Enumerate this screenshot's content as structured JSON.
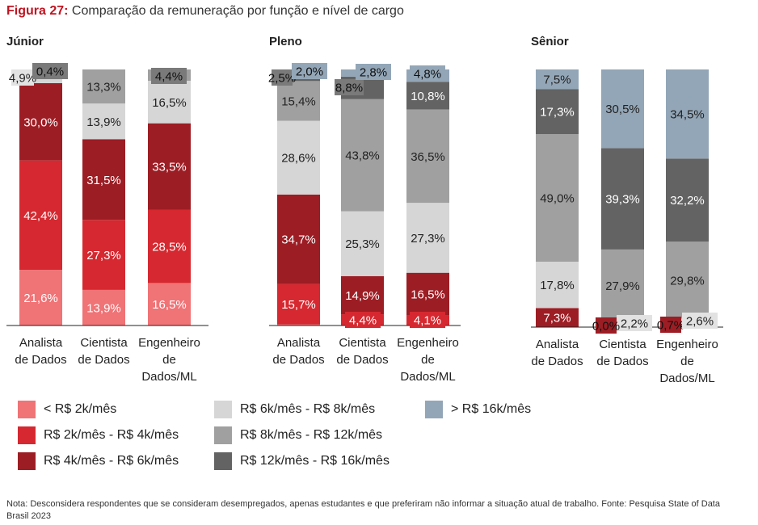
{
  "figure": {
    "label": "Figura 27:",
    "title": "Comparação da remuneração por função e nível de cargo"
  },
  "chart_data": {
    "type": "bar",
    "stacked": true,
    "normalized_to": 100,
    "value_unit": "%",
    "panels": [
      {
        "title": "Júnior",
        "categories": [
          [
            "Analista",
            "de Dados"
          ],
          [
            "Cientista",
            "de Dados"
          ],
          [
            "Engenheiro",
            "de",
            "Dados/ML"
          ]
        ],
        "values": [
          [
            21.6,
            42.4,
            30.0,
            4.9,
            0.4,
            0.0,
            0.0
          ],
          [
            13.9,
            27.3,
            31.5,
            13.9,
            13.3,
            0.0,
            0.0
          ],
          [
            16.5,
            28.5,
            33.5,
            16.5,
            4.4,
            0.0,
            0.0
          ]
        ],
        "labels": [
          [
            "21,6%",
            "42,4%",
            "30,0%",
            "4,9%",
            "0,4%",
            "",
            ""
          ],
          [
            "13,9%",
            "27,3%",
            "31,5%",
            "13,9%",
            "13,3%",
            "",
            ""
          ],
          [
            "16,5%",
            "28,5%",
            "33,5%",
            "16,5%",
            "4,4%",
            "",
            ""
          ]
        ]
      },
      {
        "title": "Pleno",
        "categories": [
          [
            "Analista",
            "de Dados"
          ],
          [
            "Cientista",
            "de Dados"
          ],
          [
            "Engenheiro",
            "de",
            "Dados/ML"
          ]
        ],
        "values": [
          [
            0.4,
            15.7,
            34.7,
            28.6,
            15.4,
            2.5,
            2.0
          ],
          [
            0.0,
            4.4,
            14.9,
            25.3,
            43.8,
            8.8,
            2.8
          ],
          [
            0.0,
            4.1,
            16.5,
            27.3,
            36.5,
            10.8,
            4.8
          ]
        ],
        "labels": [
          [
            "",
            "15,7%",
            "34,7%",
            "28,6%",
            "15,4%",
            "2,5%",
            "2,0%"
          ],
          [
            "",
            "4,4%",
            "14,9%",
            "25,3%",
            "43,8%",
            "8,8%",
            "2,8%"
          ],
          [
            "",
            "4,1%",
            "16,5%",
            "27,3%",
            "36,5%",
            "10,8%",
            "4,8%"
          ]
        ]
      },
      {
        "title": "Sênior",
        "categories": [
          [
            "Analista",
            "de Dados"
          ],
          [
            "Cientista",
            "de Dados"
          ],
          [
            "Engenheiro",
            "de",
            "Dados/ML"
          ]
        ],
        "values": [
          [
            0.0,
            0.0,
            7.3,
            17.8,
            49.0,
            17.3,
            7.5
          ],
          [
            0.0,
            0.0,
            0.0,
            2.2,
            27.9,
            39.3,
            30.5
          ],
          [
            0.0,
            0.0,
            0.7,
            2.6,
            29.8,
            32.2,
            34.5
          ]
        ],
        "labels": [
          [
            "",
            "",
            "7,3%",
            "17,8%",
            "49,0%",
            "17,3%",
            "7,5%"
          ],
          [
            "",
            "",
            "0,0%",
            "2,2%",
            "27,9%",
            "39,3%",
            "30,5%"
          ],
          [
            "",
            "",
            "0,7%",
            "2,6%",
            "29,8%",
            "32,2%",
            "34,5%"
          ]
        ]
      }
    ],
    "series": [
      {
        "name": "< R$ 2k/mês",
        "color": "#f07376"
      },
      {
        "name": "R$ 2k/mês - R$ 4k/mês",
        "color": "#d62830"
      },
      {
        "name": "R$ 4k/mês - R$ 6k/mês",
        "color": "#9d1d24"
      },
      {
        "name": "R$ 6k/mês - R$ 8k/mês",
        "color": "#d6d6d6"
      },
      {
        "name": "R$ 8k/mês - R$ 12k/mês",
        "color": "#a0a0a0"
      },
      {
        "name": "R$ 12k/mês - R$ 16k/mês",
        "color": "#636363"
      },
      {
        "name": "> R$ 16k/mês",
        "color": "#93a6b7"
      }
    ]
  },
  "footnote": "Nota: Desconsidera respondentes que se consideram desempregados, apenas estudantes e que preferiram não informar a situação atual de trabalho. Fonte: Pesquisa State of Data Brasil 2023"
}
